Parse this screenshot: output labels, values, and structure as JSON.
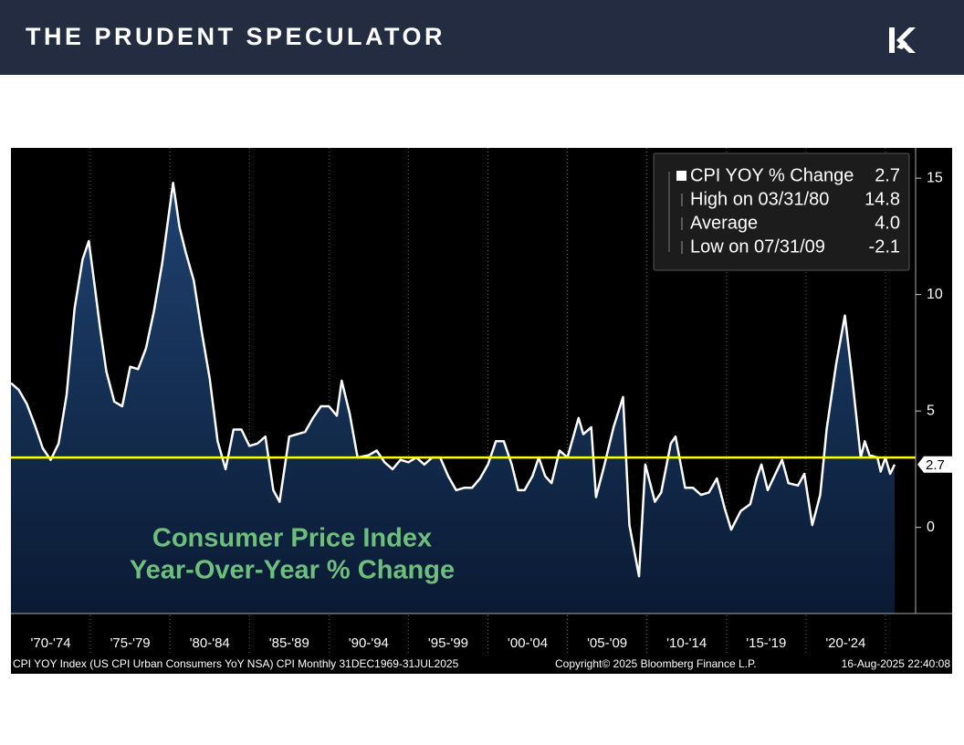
{
  "header": {
    "title": "THE PRUDENT SPECULATOR"
  },
  "chart_data": {
    "type": "area",
    "series": [
      {
        "name": "CPI YOY % Change",
        "color": "#ffffff",
        "x": [
          1970,
          1970.5,
          1971,
          1971.5,
          1972,
          1972.5,
          1973,
          1973.5,
          1974,
          1974.5,
          1974.9,
          1975.3,
          1975.6,
          1976,
          1976.5,
          1977,
          1977.5,
          1978,
          1978.5,
          1979,
          1979.5,
          1980.2,
          1980.6,
          1981,
          1981.5,
          1982,
          1982.5,
          1983,
          1983.5,
          1984,
          1984.5,
          1985,
          1985.5,
          1986,
          1986.5,
          1986.9,
          1987.5,
          1988,
          1988.5,
          1989,
          1989.5,
          1990,
          1990.5,
          1990.8,
          1991.3,
          1991.8,
          1992.5,
          1993,
          1993.5,
          1994,
          1994.5,
          1995,
          1995.5,
          1996,
          1996.5,
          1997,
          1997.5,
          1998,
          1998.5,
          1999,
          1999.5,
          2000,
          2000.5,
          2001,
          2001.5,
          2001.9,
          2002.3,
          2002.8,
          2003.2,
          2003.6,
          2004,
          2004.5,
          2005,
          2005.7,
          2006,
          2006.5,
          2006.8,
          2007.3,
          2007.9,
          2008.5,
          2008.9,
          2009.5,
          2009.9,
          2010.5,
          2010.9,
          2011.5,
          2011.8,
          2012.4,
          2012.9,
          2013.4,
          2013.9,
          2014.4,
          2014.9,
          2015.3,
          2015.9,
          2016.5,
          2016.9,
          2017.2,
          2017.6,
          2018.5,
          2018.9,
          2019.5,
          2019.9,
          2020.4,
          2020.9,
          2021.3,
          2021.9,
          2022.45,
          2022.9,
          2023.45,
          2023.7,
          2024,
          2024.5,
          2024.7,
          2025,
          2025.3,
          2025.58
        ],
        "values": [
          6.2,
          5.9,
          5.3,
          4.4,
          3.4,
          2.9,
          3.6,
          5.7,
          9.4,
          11.5,
          12.3,
          10.2,
          8.6,
          6.7,
          5.4,
          5.2,
          6.9,
          6.8,
          7.7,
          9.3,
          11.3,
          14.8,
          12.9,
          11.8,
          10.6,
          8.4,
          6.4,
          3.7,
          2.5,
          4.2,
          4.2,
          3.5,
          3.6,
          3.9,
          1.6,
          1.1,
          3.9,
          4.0,
          4.1,
          4.7,
          5.2,
          5.2,
          4.8,
          6.3,
          4.9,
          3.0,
          3.1,
          3.3,
          2.8,
          2.5,
          2.9,
          2.8,
          3.0,
          2.7,
          3.0,
          3.0,
          2.2,
          1.6,
          1.7,
          1.7,
          2.1,
          2.7,
          3.7,
          3.7,
          2.7,
          1.6,
          1.6,
          2.2,
          3.0,
          2.2,
          1.9,
          3.3,
          3.0,
          4.7,
          4.0,
          4.3,
          1.3,
          2.6,
          4.3,
          5.6,
          0.1,
          -2.1,
          2.7,
          1.1,
          1.5,
          3.6,
          3.9,
          1.7,
          1.7,
          1.4,
          1.5,
          2.1,
          0.8,
          -0.1,
          0.7,
          1.0,
          2.1,
          2.7,
          1.6,
          2.9,
          1.9,
          1.8,
          2.3,
          0.1,
          1.4,
          4.2,
          7.0,
          9.1,
          6.5,
          3.0,
          3.7,
          3.1,
          3.0,
          2.4,
          3.0,
          2.3,
          2.7
        ]
      }
    ],
    "reference_line": 3.0,
    "reference_color": "#ffff00",
    "xlim": [
      1970,
      2026.9
    ],
    "periods": [
      {
        "label": "'70-'74",
        "start": 1970,
        "end": 1975
      },
      {
        "label": "'75-'79",
        "start": 1975,
        "end": 1980
      },
      {
        "label": "'80-'84",
        "start": 1980,
        "end": 1985
      },
      {
        "label": "'85-'89",
        "start": 1985,
        "end": 1990
      },
      {
        "label": "'90-'94",
        "start": 1990,
        "end": 1995
      },
      {
        "label": "'95-'99",
        "start": 1995,
        "end": 2000
      },
      {
        "label": "'00-'04",
        "start": 2000,
        "end": 2005
      },
      {
        "label": "'05-'09",
        "start": 2005,
        "end": 2010
      },
      {
        "label": "'10-'14",
        "start": 2010,
        "end": 2015
      },
      {
        "label": "'15-'19",
        "start": 2015,
        "end": 2020
      },
      {
        "label": "'20-'24",
        "start": 2020,
        "end": 2025
      }
    ],
    "ylim": [
      -3.7,
      16.3
    ],
    "yticks": [
      0,
      5,
      10,
      15
    ],
    "legend": [
      {
        "label": "CPI YOY % Change",
        "value": "2.7"
      },
      {
        "label": "High on 03/31/80",
        "value": "14.8"
      },
      {
        "label": "Average",
        "value": "4.0"
      },
      {
        "label": "Low on 07/31/09",
        "value": "-2.1"
      }
    ],
    "annotation": [
      "Consumer Price Index",
      "Year-Over-Year % Change"
    ],
    "footer": [
      "CPI YOY Index (US CPI Urban Consumers YoY NSA) CPI  Monthly 31DEC1969-31JUL2025",
      "Copyright© 2025 Bloomberg Finance L.P.",
      "16-Aug-2025 22:40:08"
    ]
  }
}
